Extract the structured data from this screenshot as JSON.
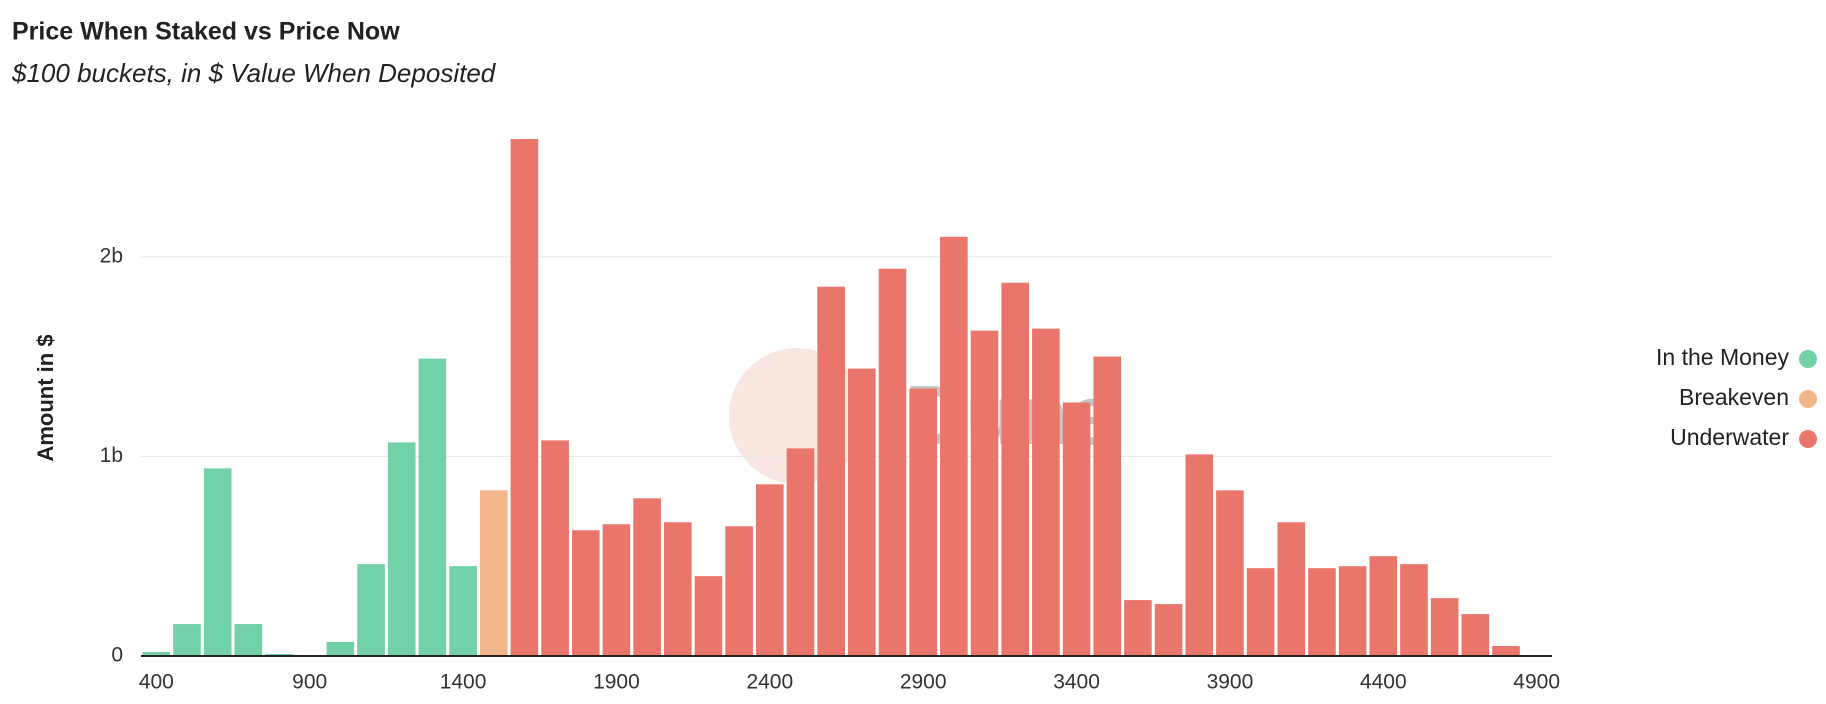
{
  "chart_data": {
    "type": "bar",
    "title": "Price When Staked vs Price Now",
    "subtitle": "$100 buckets, in $ Value When Deposited",
    "y_label": "Amount in $",
    "watermark": "Dune",
    "x": [
      400,
      500,
      600,
      700,
      800,
      900,
      1000,
      1100,
      1200,
      1300,
      1400,
      1500,
      1600,
      1700,
      1800,
      1900,
      2000,
      2100,
      2200,
      2300,
      2400,
      2500,
      2600,
      2700,
      2800,
      2900,
      3000,
      3100,
      3200,
      3300,
      3400,
      3500,
      3600,
      3700,
      3800,
      3900,
      4000,
      4100,
      4200,
      4300,
      4400,
      4500,
      4600,
      4700,
      4800
    ],
    "series": [
      {
        "name": "In the Money",
        "color": "#72d1a7",
        "values": [
          20000000,
          160000000,
          940000000,
          160000000,
          10000000,
          3000000,
          70000000,
          460000000,
          1070000000,
          1490000000,
          450000000,
          null,
          null,
          null,
          null,
          null,
          null,
          null,
          null,
          null,
          null,
          null,
          null,
          null,
          null,
          null,
          null,
          null,
          null,
          null,
          null,
          null,
          null,
          null,
          null,
          null,
          null,
          null,
          null,
          null,
          null,
          null,
          null,
          null,
          null
        ]
      },
      {
        "name": "Breakeven",
        "color": "#f3b68a",
        "values": [
          null,
          null,
          null,
          null,
          null,
          null,
          null,
          null,
          null,
          null,
          null,
          830000000,
          null,
          null,
          null,
          null,
          null,
          null,
          null,
          null,
          null,
          null,
          null,
          null,
          null,
          null,
          null,
          null,
          null,
          null,
          null,
          null,
          null,
          null,
          null,
          null,
          null,
          null,
          null,
          null,
          null,
          null,
          null,
          null,
          null
        ]
      },
      {
        "name": "Underwater",
        "color": "#ea766b",
        "values": [
          null,
          null,
          null,
          null,
          null,
          null,
          null,
          null,
          null,
          null,
          null,
          null,
          2590000000,
          1080000000,
          630000000,
          660000000,
          790000000,
          670000000,
          400000000,
          650000000,
          860000000,
          1040000000,
          1850000000,
          1440000000,
          1940000000,
          1340000000,
          2100000000,
          1630000000,
          1870000000,
          1640000000,
          1270000000,
          1500000000,
          280000000,
          260000000,
          1010000000,
          830000000,
          440000000,
          670000000,
          440000000,
          450000000,
          500000000,
          460000000,
          290000000,
          210000000,
          50000000
        ]
      }
    ],
    "xlim": [
      350,
      4950
    ],
    "xticks": [
      400,
      900,
      1400,
      1900,
      2400,
      2900,
      3400,
      3900,
      4400,
      4900
    ],
    "ylim": [
      0,
      2600000000
    ],
    "yticks": [
      {
        "value": 0,
        "label": "0"
      },
      {
        "value": 1000000000,
        "label": "1b"
      },
      {
        "value": 2000000000,
        "label": "2b"
      }
    ],
    "grid": true,
    "legend": "right"
  }
}
